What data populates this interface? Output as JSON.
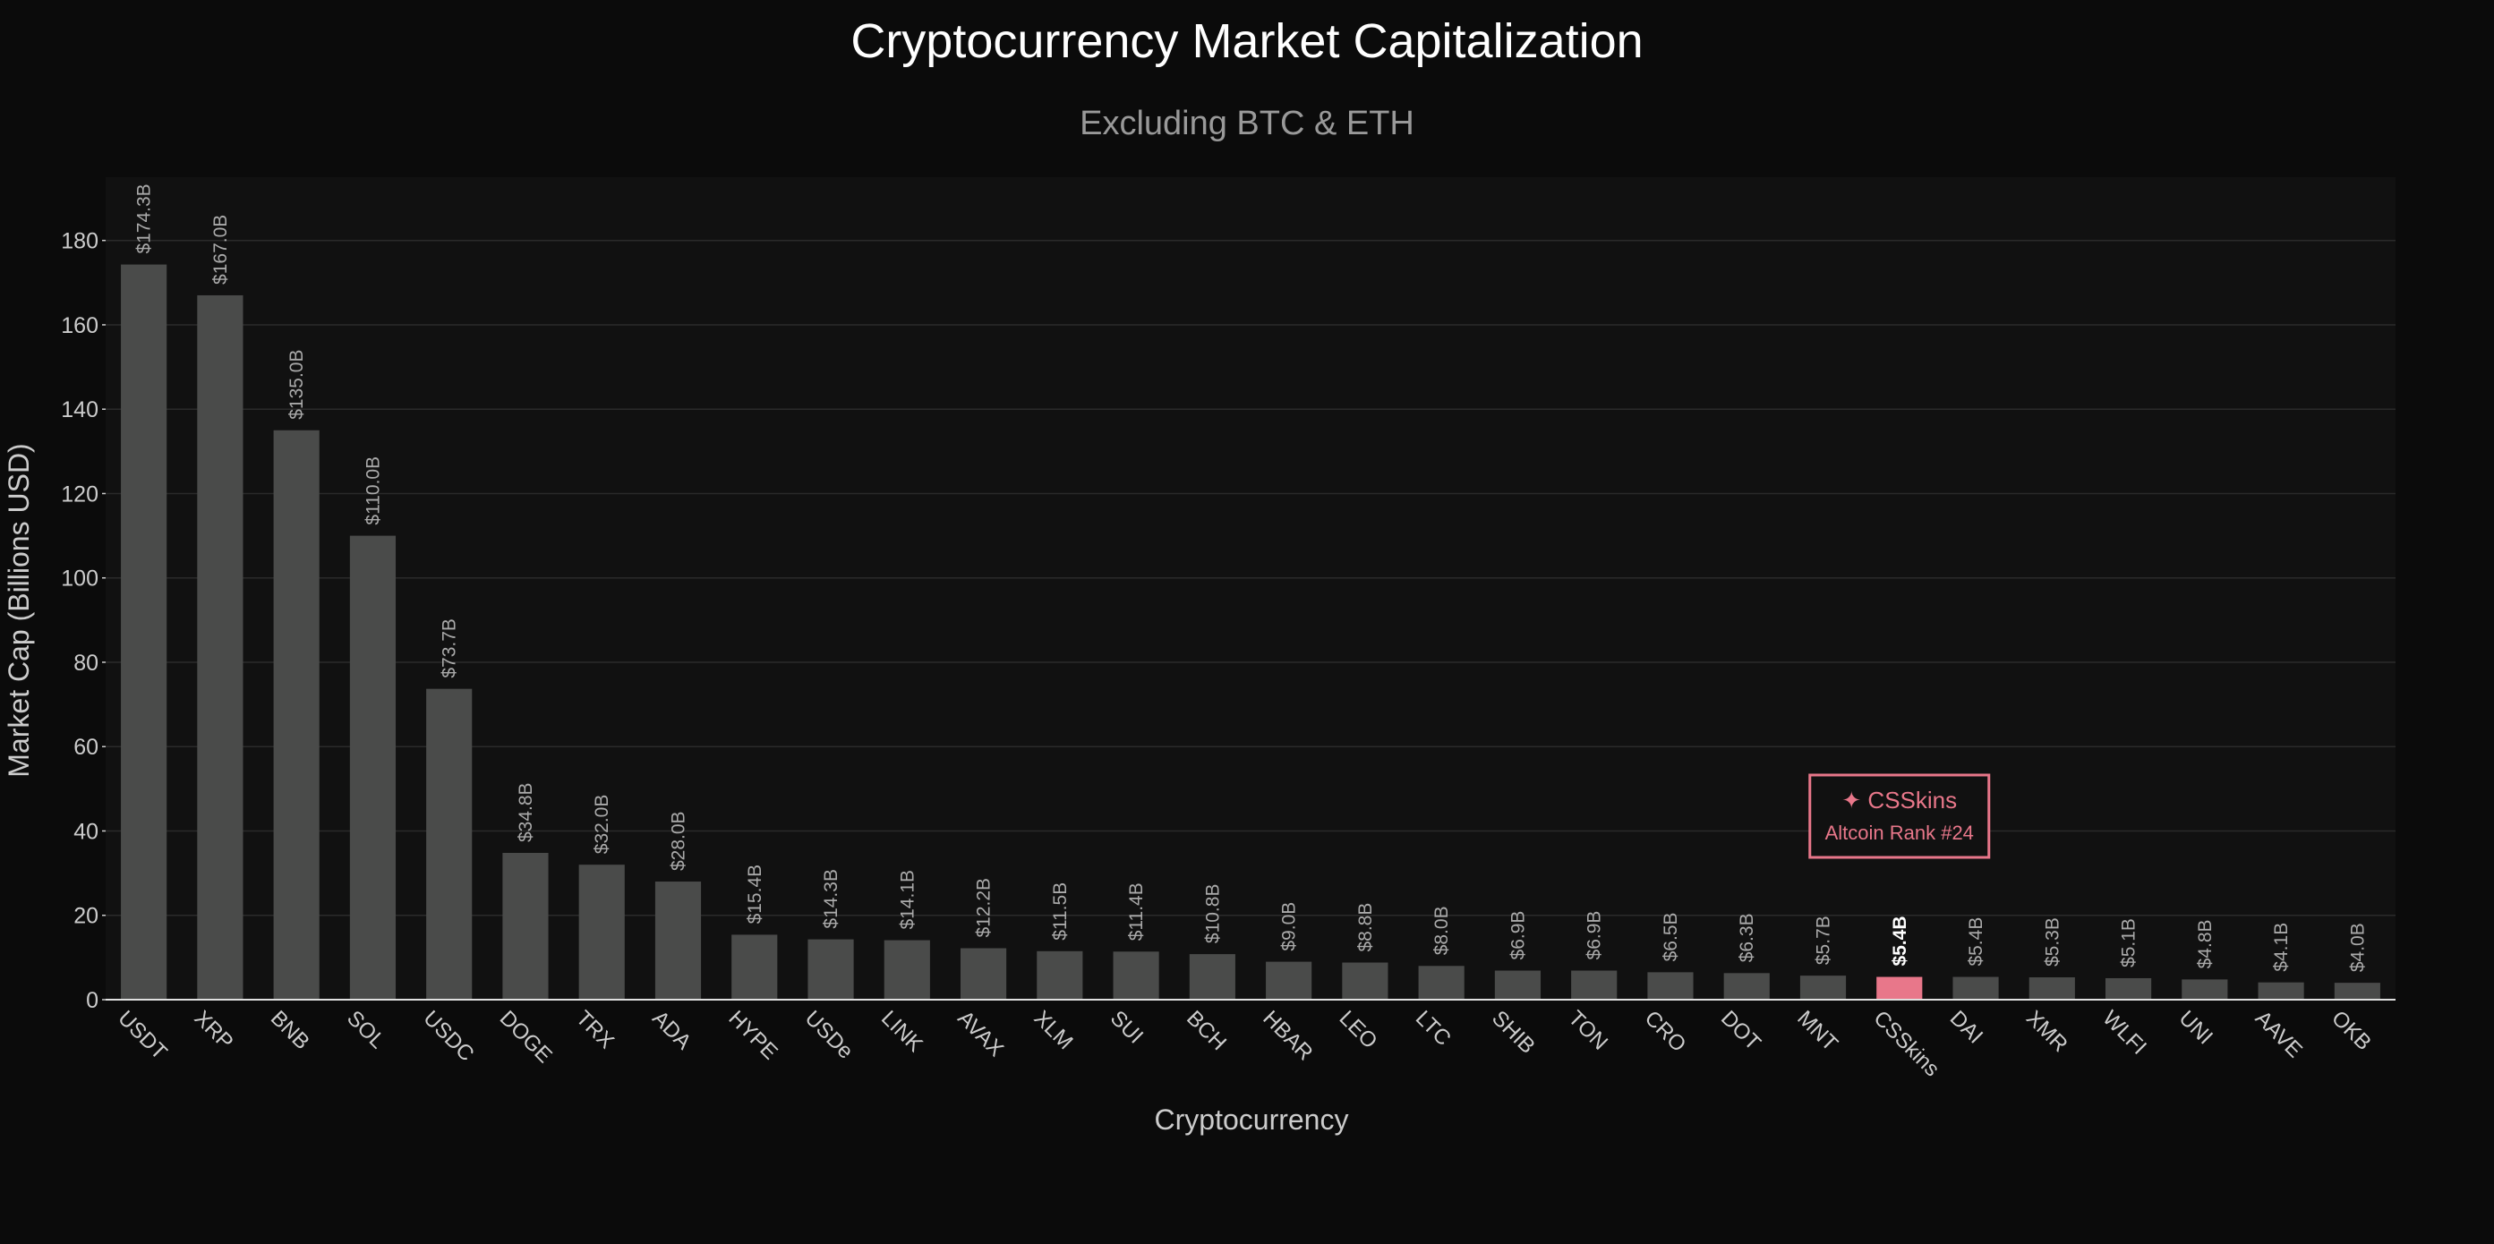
{
  "chart_data": {
    "type": "bar",
    "title": "Cryptocurrency Market Capitalization",
    "subtitle": "Excluding BTC & ETH",
    "xlabel": "Cryptocurrency",
    "ylabel": "Market Cap (Billions USD)",
    "ylim": [
      0,
      195
    ],
    "yticks": [
      0,
      20,
      40,
      60,
      80,
      100,
      120,
      140,
      160,
      180
    ],
    "grid": true,
    "categories": [
      "USDT",
      "XRP",
      "BNB",
      "SOL",
      "USDC",
      "DOGE",
      "TRX",
      "ADA",
      "HYPE",
      "USDe",
      "LINK",
      "AVAX",
      "XLM",
      "SUI",
      "BCH",
      "HBAR",
      "LEO",
      "LTC",
      "SHIB",
      "TON",
      "CRO",
      "DOT",
      "MNT",
      "CSSkins",
      "DAI",
      "XMR",
      "WLFI",
      "UNI",
      "AAVE",
      "OKB"
    ],
    "values": [
      174.3,
      167.0,
      135.0,
      110.0,
      73.7,
      34.8,
      32.0,
      28.0,
      15.4,
      14.3,
      14.1,
      12.2,
      11.5,
      11.4,
      10.8,
      9.0,
      8.8,
      8.0,
      6.9,
      6.9,
      6.5,
      6.3,
      5.7,
      5.4,
      5.4,
      5.3,
      5.1,
      4.8,
      4.1,
      4.0
    ],
    "value_labels": [
      "$174.3B",
      "$167.0B",
      "$135.0B",
      "$110.0B",
      "$73.7B",
      "$34.8B",
      "$32.0B",
      "$28.0B",
      "$15.4B",
      "$14.3B",
      "$14.1B",
      "$12.2B",
      "$11.5B",
      "$11.4B",
      "$10.8B",
      "$9.0B",
      "$8.8B",
      "$8.0B",
      "$6.9B",
      "$6.9B",
      "$6.5B",
      "$6.3B",
      "$5.7B",
      "$5.4B",
      "$5.4B",
      "$5.3B",
      "$5.1B",
      "$4.8B",
      "$4.1B",
      "$4.0B"
    ],
    "highlight_category": "CSSkins",
    "annotation": {
      "line1": "✦ CSSkins",
      "line2": "Altcoin Rank #24",
      "target_category": "CSSkins"
    },
    "colors": {
      "background": "#0b0b0b",
      "plot_background": "#111111",
      "bar": "#4a4b4a",
      "highlight": "#e8778a",
      "grid": "#2a2a2a",
      "axis_text": "#cccccc",
      "value_label": "#aaaaaa",
      "title": "#ffffff",
      "subtitle": "#999999"
    }
  }
}
